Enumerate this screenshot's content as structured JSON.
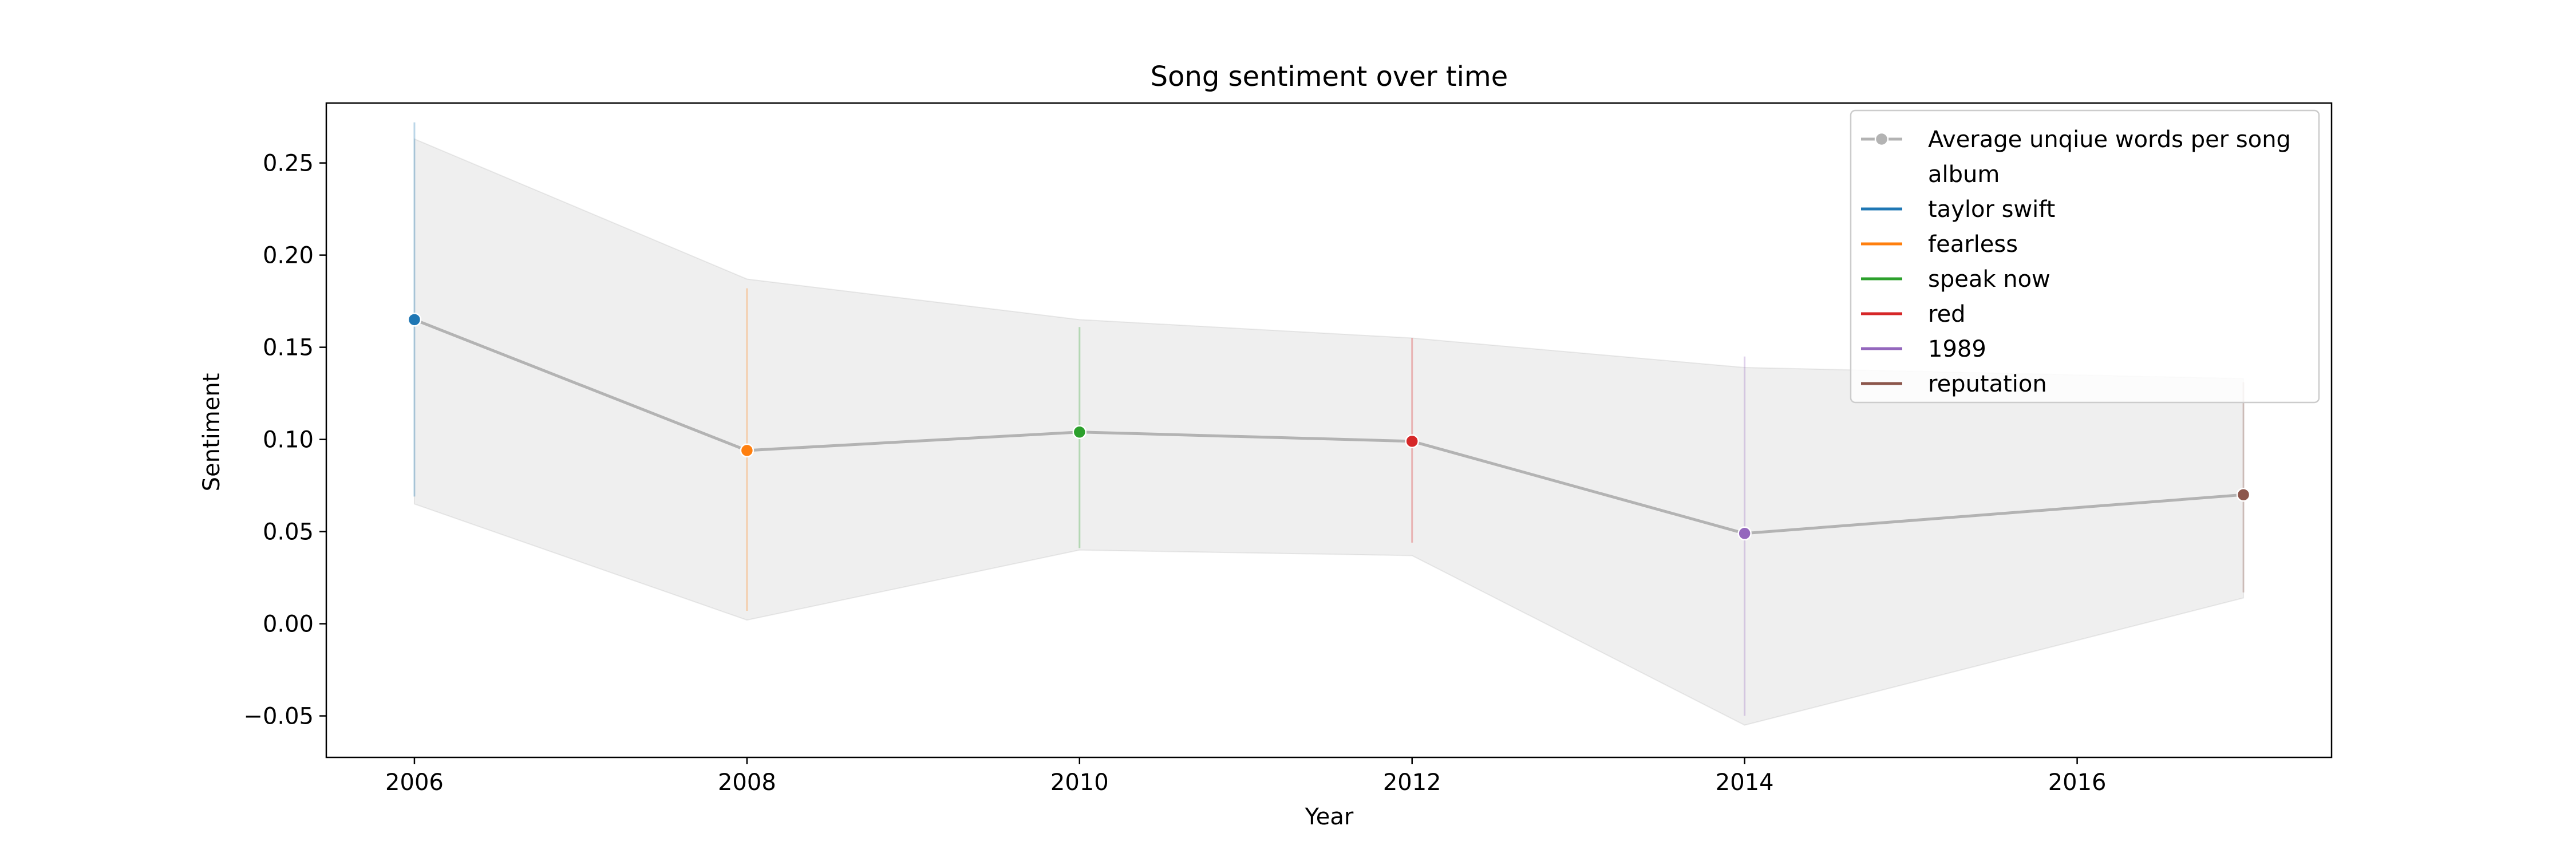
{
  "chart_data": {
    "type": "line",
    "title": "Song sentiment over time",
    "xlabel": "Year",
    "ylabel": "Sentiment",
    "xlim": [
      2005.47,
      2017.53
    ],
    "ylim": [
      -0.0725,
      0.2825
    ],
    "x_ticks": [
      2006,
      2008,
      2010,
      2012,
      2014,
      2016
    ],
    "y_ticks": [
      -0.05,
      0.0,
      0.05,
      0.1,
      0.15,
      0.2,
      0.25
    ],
    "grid": false,
    "legend_position": "top-right",
    "legend": {
      "line_entry": "Average unqiue words per song",
      "hue_title": "album"
    },
    "series": [
      {
        "name": "Average unqiue words per song",
        "color": "#b3b3b3",
        "x": [
          2006,
          2008,
          2010,
          2012,
          2014,
          2017
        ],
        "y": [
          0.165,
          0.094,
          0.104,
          0.099,
          0.049,
          0.07
        ],
        "band_lower": [
          0.065,
          0.002,
          0.04,
          0.037,
          -0.055,
          0.014
        ],
        "band_upper": [
          0.263,
          0.187,
          0.165,
          0.155,
          0.139,
          0.133
        ]
      }
    ],
    "points": [
      {
        "album": "taylor swift",
        "x": 2006,
        "y": 0.165,
        "err_low": 0.069,
        "err_high": 0.272,
        "color": "#1f77b4"
      },
      {
        "album": "fearless",
        "x": 2008,
        "y": 0.094,
        "err_low": 0.007,
        "err_high": 0.182,
        "color": "#ff7f0e"
      },
      {
        "album": "speak now",
        "x": 2010,
        "y": 0.104,
        "err_low": 0.041,
        "err_high": 0.161,
        "color": "#2ca02c"
      },
      {
        "album": "red",
        "x": 2012,
        "y": 0.099,
        "err_low": 0.044,
        "err_high": 0.155,
        "color": "#d62728"
      },
      {
        "album": "1989",
        "x": 2014,
        "y": 0.049,
        "err_low": -0.05,
        "err_high": 0.145,
        "color": "#9467bd"
      },
      {
        "album": "reputation",
        "x": 2017,
        "y": 0.07,
        "err_low": 0.017,
        "err_high": 0.131,
        "color": "#8c564b"
      }
    ]
  }
}
